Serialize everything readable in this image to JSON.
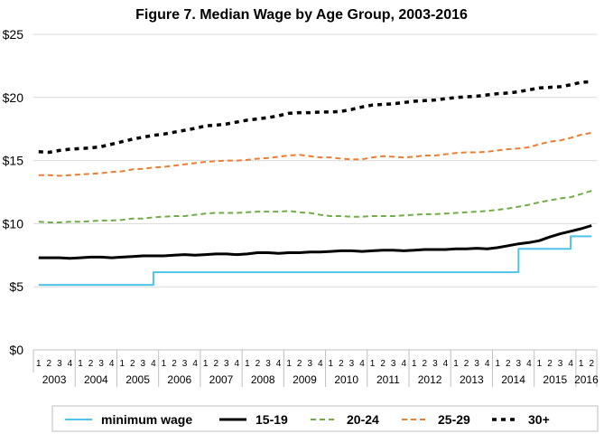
{
  "chart_data": {
    "type": "line",
    "title": "Figure 7. Median Wage by Age Group, 2003-2016",
    "xlabel": "",
    "ylabel": "",
    "ylim": [
      0,
      25
    ],
    "yticks": [
      "$0",
      "$5",
      "$10",
      "$15",
      "$20",
      "$25"
    ],
    "grid": true,
    "legend_position": "bottom",
    "years": [
      "2003",
      "2004",
      "2005",
      "2006",
      "2007",
      "2008",
      "2009",
      "2010",
      "2011",
      "2012",
      "2013",
      "2014",
      "2015",
      "2016"
    ],
    "quarter_labels": [
      "1",
      "2",
      "3",
      "4"
    ],
    "x": [
      "2003 Q1",
      "2003 Q2",
      "2003 Q3",
      "2003 Q4",
      "2004 Q1",
      "2004 Q2",
      "2004 Q3",
      "2004 Q4",
      "2005 Q1",
      "2005 Q2",
      "2005 Q3",
      "2005 Q4",
      "2006 Q1",
      "2006 Q2",
      "2006 Q3",
      "2006 Q4",
      "2007 Q1",
      "2007 Q2",
      "2007 Q3",
      "2007 Q4",
      "2008 Q1",
      "2008 Q2",
      "2008 Q3",
      "2008 Q4",
      "2009 Q1",
      "2009 Q2",
      "2009 Q3",
      "2009 Q4",
      "2010 Q1",
      "2010 Q2",
      "2010 Q3",
      "2010 Q4",
      "2011 Q1",
      "2011 Q2",
      "2011 Q3",
      "2011 Q4",
      "2012 Q1",
      "2012 Q2",
      "2012 Q3",
      "2012 Q4",
      "2013 Q1",
      "2013 Q2",
      "2013 Q3",
      "2013 Q4",
      "2014 Q1",
      "2014 Q2",
      "2014 Q3",
      "2014 Q4",
      "2015 Q1",
      "2015 Q2",
      "2015 Q3",
      "2015 Q4",
      "2016 Q1",
      "2016 Q2"
    ],
    "series": [
      {
        "name": "minimum wage",
        "color": "#4fc3e8",
        "dash": "solid",
        "values": [
          5.15,
          5.15,
          5.15,
          5.15,
          5.15,
          5.15,
          5.15,
          5.15,
          5.15,
          5.15,
          5.15,
          6.15,
          6.15,
          6.15,
          6.15,
          6.15,
          6.15,
          6.15,
          6.15,
          6.15,
          6.15,
          6.15,
          6.15,
          6.15,
          6.15,
          6.15,
          6.15,
          6.15,
          6.15,
          6.15,
          6.15,
          6.15,
          6.15,
          6.15,
          6.15,
          6.15,
          6.15,
          6.15,
          6.15,
          6.15,
          6.15,
          6.15,
          6.15,
          6.15,
          6.15,
          6.15,
          8.0,
          8.0,
          8.0,
          8.0,
          8.0,
          9.0,
          9.0,
          9.0
        ]
      },
      {
        "name": "15-19",
        "color": "#000000",
        "dash": "solid",
        "values": [
          7.3,
          7.3,
          7.3,
          7.25,
          7.3,
          7.35,
          7.35,
          7.3,
          7.35,
          7.4,
          7.45,
          7.45,
          7.45,
          7.5,
          7.55,
          7.5,
          7.55,
          7.6,
          7.6,
          7.55,
          7.6,
          7.7,
          7.7,
          7.65,
          7.7,
          7.7,
          7.75,
          7.75,
          7.8,
          7.85,
          7.85,
          7.8,
          7.85,
          7.9,
          7.9,
          7.85,
          7.9,
          7.95,
          7.95,
          7.95,
          8.0,
          8.0,
          8.05,
          8.0,
          8.1,
          8.25,
          8.4,
          8.5,
          8.65,
          8.95,
          9.2,
          9.4,
          9.6,
          9.85
        ]
      },
      {
        "name": "20-24",
        "color": "#70ad47",
        "dash": "dash",
        "values": [
          10.15,
          10.1,
          10.1,
          10.15,
          10.15,
          10.2,
          10.25,
          10.25,
          10.3,
          10.4,
          10.4,
          10.5,
          10.55,
          10.6,
          10.6,
          10.7,
          10.8,
          10.85,
          10.85,
          10.85,
          10.9,
          10.95,
          10.95,
          10.95,
          11.0,
          10.9,
          10.85,
          10.7,
          10.6,
          10.6,
          10.55,
          10.55,
          10.6,
          10.6,
          10.6,
          10.65,
          10.7,
          10.75,
          10.75,
          10.8,
          10.85,
          10.9,
          10.95,
          11.0,
          11.1,
          11.2,
          11.35,
          11.5,
          11.7,
          11.85,
          12.0,
          12.1,
          12.35,
          12.6
        ]
      },
      {
        "name": "25-29",
        "color": "#ed7d31",
        "dash": "dash",
        "values": [
          13.85,
          13.85,
          13.8,
          13.85,
          13.9,
          13.95,
          14.0,
          14.1,
          14.15,
          14.3,
          14.35,
          14.45,
          14.5,
          14.6,
          14.7,
          14.8,
          14.9,
          14.95,
          15.0,
          15.0,
          15.05,
          15.15,
          15.2,
          15.3,
          15.4,
          15.45,
          15.35,
          15.25,
          15.25,
          15.15,
          15.1,
          15.1,
          15.25,
          15.35,
          15.3,
          15.25,
          15.3,
          15.4,
          15.4,
          15.5,
          15.6,
          15.65,
          15.65,
          15.7,
          15.8,
          15.9,
          15.95,
          16.05,
          16.3,
          16.5,
          16.6,
          16.8,
          17.05,
          17.2
        ]
      },
      {
        "name": "30+",
        "color": "#000000",
        "dash": "dash-bold",
        "values": [
          15.7,
          15.65,
          15.8,
          15.9,
          15.95,
          16.0,
          16.1,
          16.3,
          16.5,
          16.7,
          16.85,
          17.0,
          17.1,
          17.25,
          17.4,
          17.55,
          17.75,
          17.8,
          17.9,
          18.05,
          18.2,
          18.3,
          18.4,
          18.55,
          18.75,
          18.8,
          18.8,
          18.85,
          18.85,
          18.9,
          19.05,
          19.25,
          19.4,
          19.45,
          19.5,
          19.6,
          19.7,
          19.75,
          19.8,
          19.9,
          20.0,
          20.05,
          20.1,
          20.2,
          20.3,
          20.35,
          20.45,
          20.6,
          20.75,
          20.8,
          20.85,
          21.0,
          21.2,
          21.25
        ]
      }
    ]
  }
}
